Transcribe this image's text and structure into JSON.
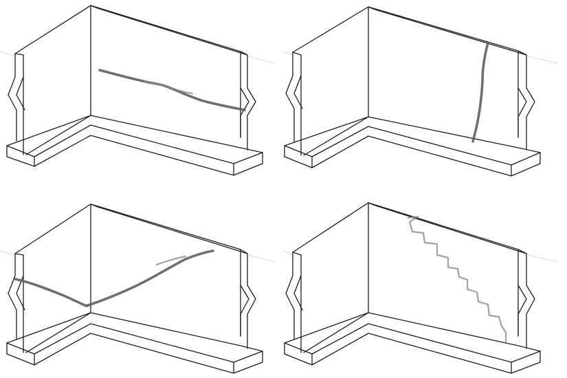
{
  "figure": {
    "panels": [
      {
        "id": "panel-1",
        "crack": "diagonal-crack"
      },
      {
        "id": "panel-2",
        "crack": "vertical-crack"
      },
      {
        "id": "panel-3",
        "crack": "v-shaped-crack"
      },
      {
        "id": "panel-4",
        "crack": "stepped-crack"
      }
    ],
    "line_color": "#1c1c1c",
    "crack_color": "#5f5f5f"
  }
}
